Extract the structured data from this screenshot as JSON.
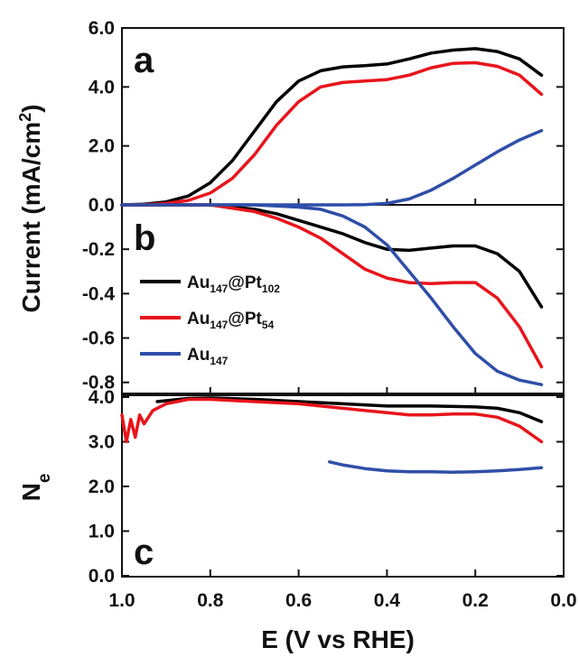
{
  "figure": {
    "ylabel_main": "Current (mA/cm",
    "ylabel_main_sup": "2",
    "ylabel_main_close": ")",
    "ylabel_ne_base": "N",
    "ylabel_ne_sub": "e",
    "xlabel": "E (V vs RHE)",
    "legend": [
      {
        "base1": "Au",
        "sub1": "147",
        "base2": "@Pt",
        "sub2": "102",
        "color": "#000000"
      },
      {
        "base1": "Au",
        "sub1": "147",
        "base2": "@Pt",
        "sub2": "54",
        "color": "#e8141c"
      },
      {
        "base1": "Au",
        "sub1": "147",
        "base2": "",
        "sub2": "",
        "color": "#2f4ea8"
      }
    ],
    "colors": {
      "Au147@Pt102": "#000000",
      "Au147@Pt54": "#e8141c",
      "Au147": "#2f4ea8"
    }
  },
  "chart_data": [
    {
      "panel": "a",
      "type": "line",
      "xlim": [
        1.0,
        0.0
      ],
      "ylim": [
        0.0,
        6.0
      ],
      "yticks": [
        "0.0",
        "2.0",
        "4.0",
        "6.0"
      ],
      "series": [
        {
          "name": "Au147@Pt102",
          "color": "#000000",
          "x": [
            1.0,
            0.95,
            0.9,
            0.85,
            0.8,
            0.75,
            0.7,
            0.65,
            0.6,
            0.55,
            0.5,
            0.45,
            0.4,
            0.35,
            0.3,
            0.25,
            0.2,
            0.15,
            0.1,
            0.05
          ],
          "y": [
            0.0,
            0.02,
            0.1,
            0.3,
            0.75,
            1.5,
            2.5,
            3.5,
            4.2,
            4.55,
            4.68,
            4.72,
            4.78,
            4.95,
            5.15,
            5.25,
            5.3,
            5.2,
            4.95,
            4.4
          ]
        },
        {
          "name": "Au147@Pt54",
          "color": "#e8141c",
          "x": [
            1.0,
            0.95,
            0.9,
            0.85,
            0.8,
            0.75,
            0.7,
            0.65,
            0.6,
            0.55,
            0.5,
            0.45,
            0.4,
            0.35,
            0.3,
            0.25,
            0.2,
            0.15,
            0.1,
            0.05
          ],
          "y": [
            0.0,
            0.01,
            0.05,
            0.15,
            0.4,
            0.9,
            1.7,
            2.7,
            3.5,
            4.0,
            4.15,
            4.2,
            4.25,
            4.4,
            4.65,
            4.8,
            4.82,
            4.7,
            4.4,
            3.75
          ]
        },
        {
          "name": "Au147",
          "color": "#2f4ea8",
          "x": [
            1.0,
            0.9,
            0.8,
            0.7,
            0.6,
            0.5,
            0.45,
            0.4,
            0.35,
            0.3,
            0.25,
            0.2,
            0.15,
            0.1,
            0.05
          ],
          "y": [
            0.0,
            0.0,
            0.0,
            0.0,
            0.0,
            0.0,
            0.01,
            0.05,
            0.2,
            0.5,
            0.9,
            1.35,
            1.8,
            2.2,
            2.52
          ]
        }
      ]
    },
    {
      "panel": "b",
      "type": "line",
      "xlim": [
        1.0,
        0.0
      ],
      "ylim": [
        -0.85,
        0.0
      ],
      "yticks": [
        "-0.2",
        "-0.4",
        "-0.6",
        "-0.8"
      ],
      "series": [
        {
          "name": "Au147@Pt102",
          "color": "#000000",
          "x": [
            1.0,
            0.9,
            0.8,
            0.7,
            0.65,
            0.6,
            0.55,
            0.5,
            0.45,
            0.4,
            0.35,
            0.3,
            0.25,
            0.2,
            0.15,
            0.1,
            0.05
          ],
          "y": [
            0.0,
            0.0,
            0.0,
            -0.02,
            -0.04,
            -0.07,
            -0.1,
            -0.13,
            -0.17,
            -0.2,
            -0.205,
            -0.195,
            -0.185,
            -0.185,
            -0.22,
            -0.3,
            -0.46
          ]
        },
        {
          "name": "Au147@Pt54",
          "color": "#e8141c",
          "x": [
            1.0,
            0.9,
            0.8,
            0.7,
            0.65,
            0.6,
            0.55,
            0.5,
            0.45,
            0.4,
            0.35,
            0.3,
            0.25,
            0.2,
            0.15,
            0.1,
            0.05
          ],
          "y": [
            0.0,
            0.0,
            0.0,
            -0.03,
            -0.06,
            -0.1,
            -0.15,
            -0.22,
            -0.29,
            -0.33,
            -0.35,
            -0.355,
            -0.35,
            -0.35,
            -0.42,
            -0.55,
            -0.73
          ]
        },
        {
          "name": "Au147",
          "color": "#2f4ea8",
          "x": [
            1.0,
            0.9,
            0.8,
            0.7,
            0.6,
            0.55,
            0.5,
            0.45,
            0.4,
            0.35,
            0.3,
            0.25,
            0.2,
            0.15,
            0.1,
            0.05
          ],
          "y": [
            0.0,
            0.0,
            0.0,
            0.0,
            -0.01,
            -0.02,
            -0.05,
            -0.1,
            -0.18,
            -0.3,
            -0.42,
            -0.55,
            -0.67,
            -0.75,
            -0.79,
            -0.81
          ]
        }
      ]
    },
    {
      "panel": "c",
      "type": "line",
      "xlim": [
        1.0,
        0.0
      ],
      "ylim": [
        0.0,
        4.0
      ],
      "yticks": [
        "0.0",
        "1.0",
        "2.0",
        "3.0",
        "4.0"
      ],
      "xticks": [
        "1.0",
        "0.8",
        "0.6",
        "0.4",
        "0.2",
        "0.0"
      ],
      "series": [
        {
          "name": "Au147@Pt102",
          "color": "#000000",
          "x": [
            0.92,
            0.85,
            0.8,
            0.7,
            0.6,
            0.5,
            0.4,
            0.3,
            0.2,
            0.15,
            0.1,
            0.05
          ],
          "y": [
            3.9,
            3.97,
            3.98,
            3.95,
            3.9,
            3.85,
            3.8,
            3.8,
            3.78,
            3.75,
            3.65,
            3.45
          ]
        },
        {
          "name": "Au147@Pt54",
          "color": "#e8141c",
          "x": [
            1.0,
            0.99,
            0.98,
            0.97,
            0.96,
            0.95,
            0.93,
            0.9,
            0.85,
            0.8,
            0.7,
            0.6,
            0.5,
            0.45,
            0.4,
            0.35,
            0.3,
            0.25,
            0.2,
            0.15,
            0.1,
            0.05
          ],
          "y": [
            3.6,
            3.0,
            3.5,
            3.1,
            3.6,
            3.4,
            3.7,
            3.85,
            3.95,
            3.95,
            3.9,
            3.85,
            3.75,
            3.7,
            3.65,
            3.6,
            3.6,
            3.62,
            3.62,
            3.55,
            3.35,
            3.0
          ]
        },
        {
          "name": "Au147",
          "color": "#2f4ea8",
          "x": [
            0.53,
            0.5,
            0.45,
            0.4,
            0.35,
            0.3,
            0.25,
            0.2,
            0.15,
            0.1,
            0.05
          ],
          "y": [
            2.55,
            2.48,
            2.4,
            2.35,
            2.33,
            2.33,
            2.32,
            2.33,
            2.35,
            2.38,
            2.42
          ]
        }
      ]
    }
  ]
}
